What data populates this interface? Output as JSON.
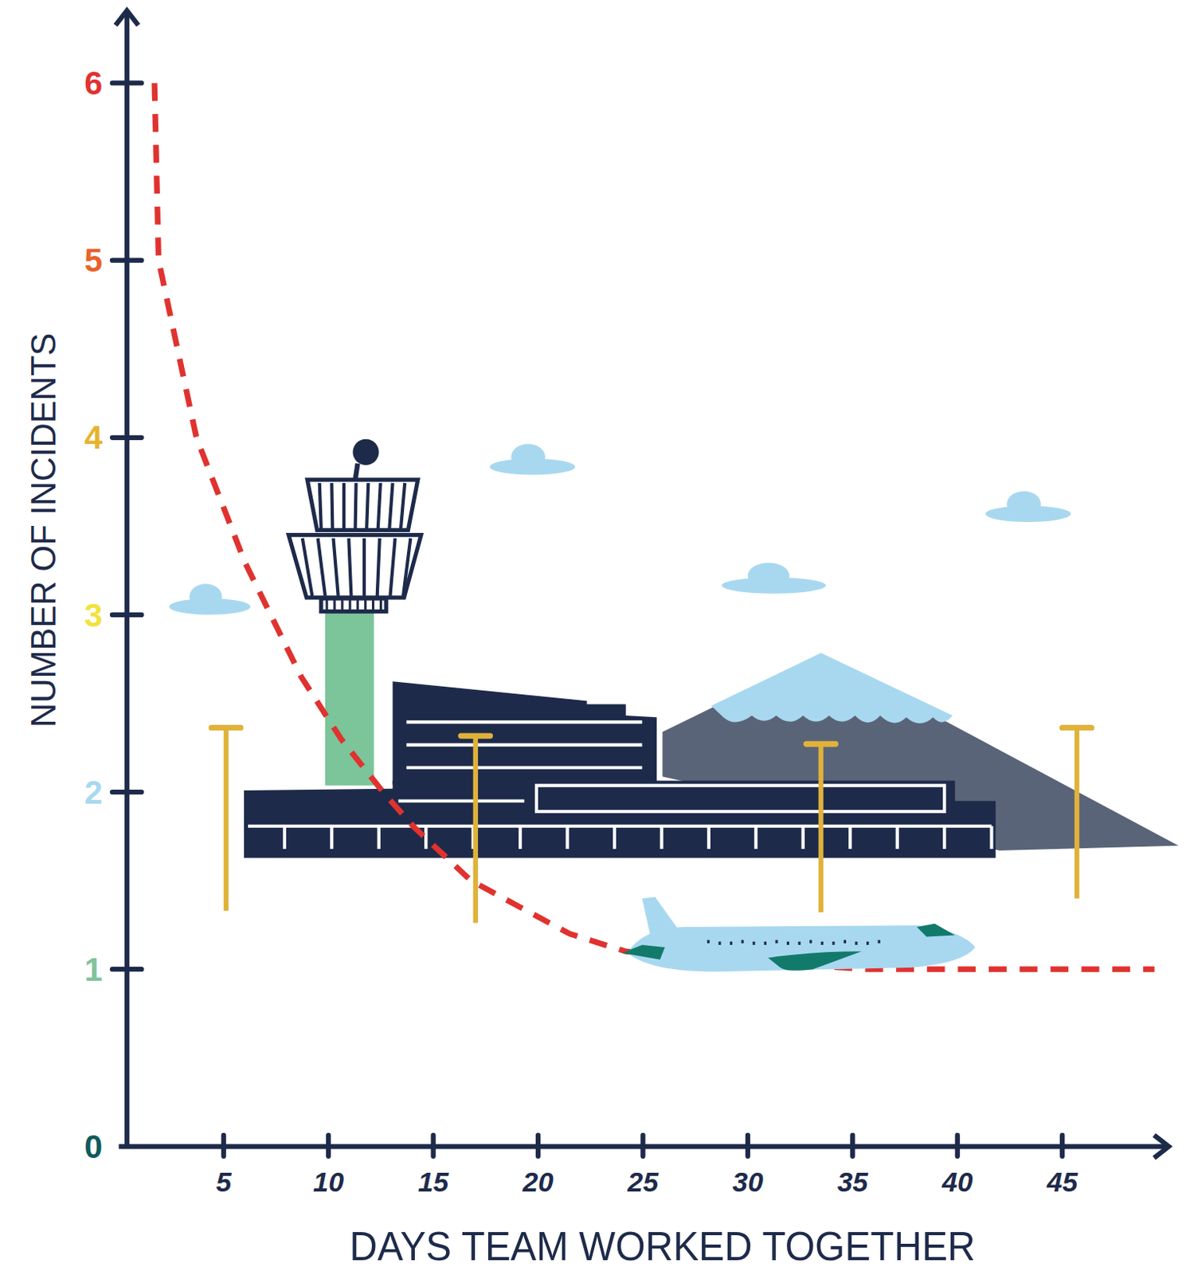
{
  "chart_data": {
    "type": "line",
    "x_label": "DAYS TEAM WORKED TOGETHER",
    "y_label": "NUMBER OF INCIDENTS",
    "x": [
      1.7,
      1.9,
      3.7,
      6.0,
      8.7,
      10.6,
      12.6,
      14.1,
      16.8,
      21.5,
      24.2,
      35.6,
      42.0,
      49.4
    ],
    "series": [
      {
        "color": "#e0322f",
        "line_style": "dashed",
        "values": [
          6,
          5,
          4,
          3.3,
          2.65,
          2.3,
          2,
          1.8,
          1.5,
          1.2,
          1.1,
          1.0,
          1.0,
          1.0
        ]
      }
    ],
    "xlim": [
      0,
      50
    ],
    "ylim": [
      0,
      6.4
    ],
    "xticks": [
      5,
      10,
      15,
      20,
      25,
      30,
      35,
      40,
      45
    ],
    "yticks": [
      0,
      1,
      2,
      3,
      4,
      5,
      6
    ],
    "grid": false
  }
}
